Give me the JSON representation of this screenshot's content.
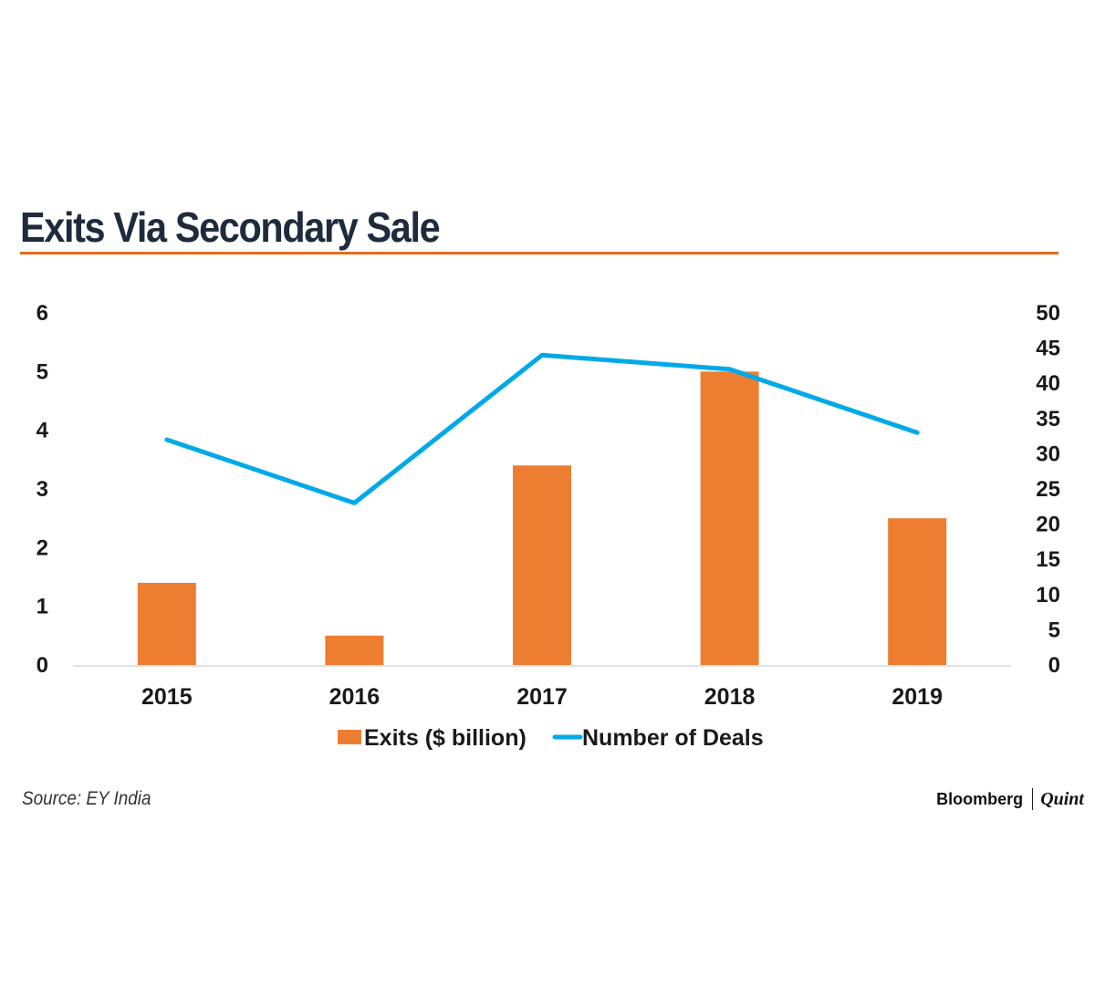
{
  "title": "Exits Via Secondary Sale",
  "source": "Source: EY India",
  "brand": {
    "name": "Bloomberg",
    "suffix": "Quint"
  },
  "colors": {
    "bar": "#ed7d31",
    "line": "#00a9e8",
    "rule": "#e46c1e",
    "axis": "#d9d9d9",
    "text": "#1a1a1a"
  },
  "chart_data": {
    "type": "bar",
    "title": "Exits Via Secondary Sale",
    "categories": [
      "2015",
      "2016",
      "2017",
      "2018",
      "2019"
    ],
    "series": [
      {
        "name": "Exits ($ billion)",
        "type": "bar",
        "axis": "left",
        "values": [
          1.4,
          0.5,
          3.4,
          5.0,
          2.5
        ]
      },
      {
        "name": "Number of Deals",
        "type": "line",
        "axis": "right",
        "values": [
          32,
          23,
          44,
          42,
          33
        ]
      }
    ],
    "y_left": {
      "min": 0,
      "max": 6,
      "ticks": [
        "0",
        "1",
        "2",
        "3",
        "4",
        "5",
        "6"
      ]
    },
    "y_right": {
      "min": 0,
      "max": 50,
      "ticks": [
        "0",
        "5",
        "10",
        "15",
        "20",
        "25",
        "30",
        "35",
        "40",
        "45",
        "50"
      ]
    },
    "grid": false,
    "legend_position": "bottom-center"
  }
}
